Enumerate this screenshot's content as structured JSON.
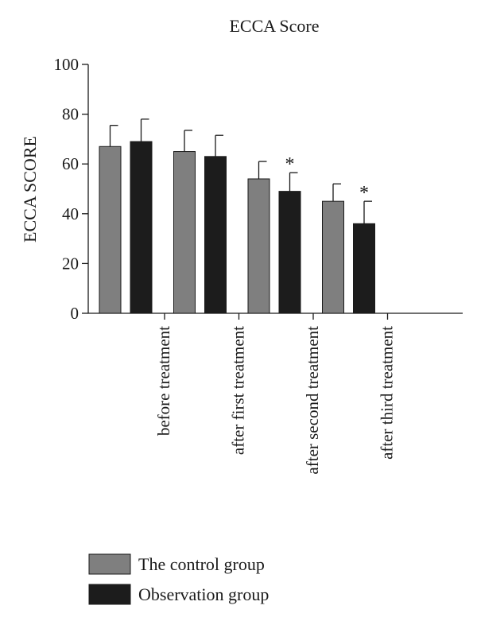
{
  "chart_data": {
    "type": "bar",
    "title": "ECCA Score",
    "xlabel": "",
    "ylabel": "ECCA SCORE",
    "ylim": [
      0,
      100
    ],
    "yticks": [
      0,
      20,
      40,
      60,
      80,
      100
    ],
    "categories": [
      "before treatment",
      "after first treatment",
      "after second treatment",
      "after third treatment"
    ],
    "series": [
      {
        "name": "The control group",
        "color": "#7f7f7f",
        "values": [
          67,
          65,
          54,
          45
        ],
        "errors": [
          8.5,
          8.5,
          7,
          7
        ],
        "significance": [
          "",
          "",
          "",
          ""
        ]
      },
      {
        "name": "Observation group",
        "color": "#1c1c1c",
        "values": [
          69,
          63,
          49,
          36
        ],
        "errors": [
          9,
          8.5,
          7.5,
          9
        ],
        "significance": [
          "",
          "",
          "*",
          "*"
        ]
      }
    ],
    "grid": false,
    "legend": "bottom-left"
  }
}
